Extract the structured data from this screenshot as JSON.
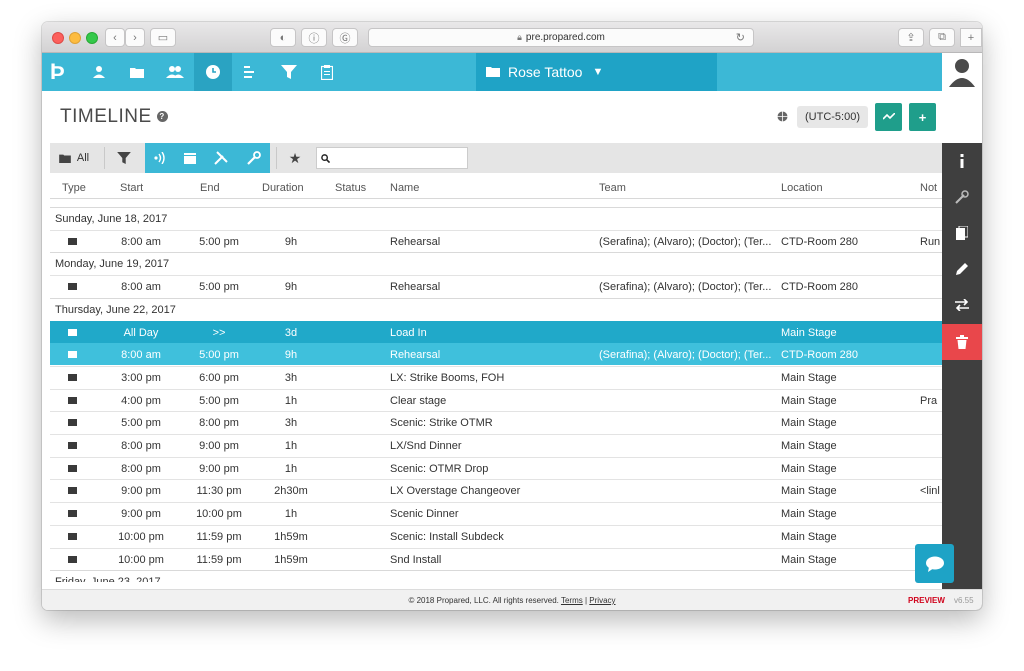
{
  "browser": {
    "url": "pre.propared.com"
  },
  "nav": {
    "project_name": "Rose Tattoo",
    "icons": [
      "logo-icon",
      "person-icon",
      "folder-icon",
      "people-icon",
      "clock-icon",
      "list-icon",
      "filter-icon",
      "clipboard-icon"
    ]
  },
  "header": {
    "title": "TIMELINE",
    "help": "?",
    "timezone": "(UTC-5:00)",
    "action_graph": "~",
    "action_add": "+"
  },
  "toolbar": {
    "all_label": "All",
    "star": "★",
    "search_value": ""
  },
  "columns": {
    "type": "Type",
    "start": "Start",
    "end": "End",
    "duration": "Duration",
    "status": "Status",
    "name": "Name",
    "team": "Team",
    "location": "Location",
    "notes": "Not"
  },
  "groups": [
    {
      "date": "Sunday, June 18, 2017",
      "rows": [
        {
          "start": "8:00 am",
          "end": "5:00 pm",
          "duration": "9h",
          "name": "Rehearsal",
          "team": "(Serafina); (Alvaro); (Doctor); (Ter...",
          "location": "CTD-Room 280",
          "notes": "Run"
        }
      ]
    },
    {
      "date": "Monday, June 19, 2017",
      "rows": [
        {
          "start": "8:00 am",
          "end": "5:00 pm",
          "duration": "9h",
          "name": "Rehearsal",
          "team": "(Serafina); (Alvaro); (Doctor); (Ter...",
          "location": "CTD-Room 280",
          "notes": ""
        }
      ]
    },
    {
      "date": "Thursday, June 22, 2017",
      "rows": [
        {
          "start": "All Day",
          "end": ">>",
          "duration": "3d",
          "name": "Load In",
          "team": "",
          "location": "Main Stage",
          "notes": "",
          "selected": 1
        },
        {
          "start": "8:00 am",
          "end": "5:00 pm",
          "duration": "9h",
          "name": "Rehearsal",
          "team": "(Serafina); (Alvaro); (Doctor); (Ter...",
          "location": "CTD-Room 280",
          "notes": "",
          "selected": 2
        },
        {
          "start": "3:00 pm",
          "end": "6:00 pm",
          "duration": "3h",
          "name": "LX: Strike Booms, FOH",
          "team": "",
          "location": "Main Stage",
          "notes": ""
        },
        {
          "start": "4:00 pm",
          "end": "5:00 pm",
          "duration": "1h",
          "name": "Clear stage",
          "team": "",
          "location": "Main Stage",
          "notes": "Pra"
        },
        {
          "start": "5:00 pm",
          "end": "8:00 pm",
          "duration": "3h",
          "name": "Scenic: Strike OTMR",
          "team": "",
          "location": "Main Stage",
          "notes": ""
        },
        {
          "start": "8:00 pm",
          "end": "9:00 pm",
          "duration": "1h",
          "name": "LX/Snd Dinner",
          "team": "",
          "location": "Main Stage",
          "notes": ""
        },
        {
          "start": "8:00 pm",
          "end": "9:00 pm",
          "duration": "1h",
          "name": "Scenic: OTMR Drop",
          "team": "",
          "location": "Main Stage",
          "notes": ""
        },
        {
          "start": "9:00 pm",
          "end": "11:30 pm",
          "duration": "2h30m",
          "name": "LX Overstage Changeover",
          "team": "",
          "location": "Main Stage",
          "notes": "<linl"
        },
        {
          "start": "9:00 pm",
          "end": "10:00 pm",
          "duration": "1h",
          "name": "Scenic Dinner",
          "team": "",
          "location": "Main Stage",
          "notes": ""
        },
        {
          "start": "10:00 pm",
          "end": "11:59 pm",
          "duration": "1h59m",
          "name": "Scenic: Install Subdeck",
          "team": "",
          "location": "Main Stage",
          "notes": ""
        },
        {
          "start": "10:00 pm",
          "end": "11:59 pm",
          "duration": "1h59m",
          "name": "Snd Install",
          "team": "",
          "location": "Main Stage",
          "notes": ""
        }
      ]
    },
    {
      "date": "Friday, June 23, 2017",
      "rows": []
    }
  ],
  "footer": {
    "copyright": "© 2018 Propared, LLC. All rights reserved.",
    "terms": "Terms",
    "separator": "|",
    "privacy": "Privacy",
    "preview": "PREVIEW",
    "version": "v6.55"
  },
  "colors": {
    "brand": "#3cb8d6",
    "selected_row": "#20a9c9",
    "selected_row_alt": "#3fc0dc",
    "danger": "#e9474b",
    "action_green": "#1f9e8b"
  }
}
